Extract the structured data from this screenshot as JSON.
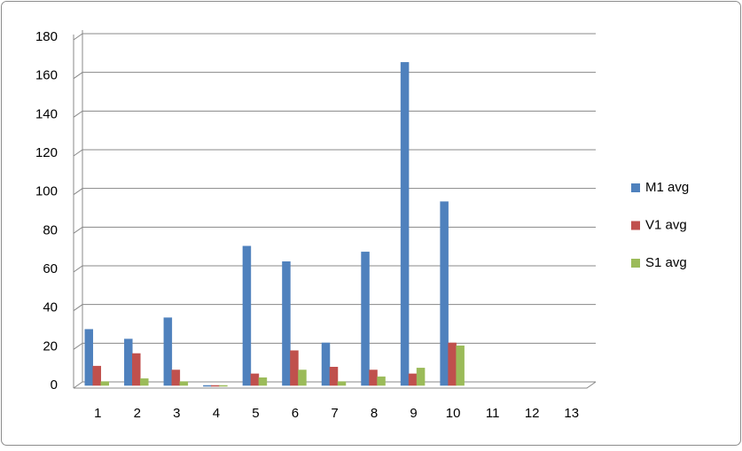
{
  "chart_data": {
    "type": "bar",
    "categories": [
      "1",
      "2",
      "3",
      "4",
      "5",
      "6",
      "7",
      "8",
      "9",
      "10",
      "11",
      "12",
      "13"
    ],
    "series": [
      {
        "name": "M1 avg",
        "color": "#4f81bd",
        "values": [
          29,
          24,
          35,
          0,
          72,
          64,
          22,
          69,
          167,
          95,
          null,
          null,
          null
        ]
      },
      {
        "name": "V1 avg",
        "color": "#c0504d",
        "values": [
          10,
          16.5,
          8,
          0,
          6,
          18,
          9.5,
          8,
          6,
          22,
          null,
          null,
          null
        ]
      },
      {
        "name": "S1 avg",
        "color": "#9bbb59",
        "values": [
          2,
          3.5,
          2,
          0,
          4,
          8,
          2,
          4.5,
          9,
          20.5,
          null,
          null,
          null
        ]
      }
    ],
    "ylim": [
      0,
      180
    ],
    "yticks": [
      0,
      20,
      40,
      60,
      80,
      100,
      120,
      140,
      160,
      180
    ],
    "grid": true,
    "legend": "right"
  }
}
